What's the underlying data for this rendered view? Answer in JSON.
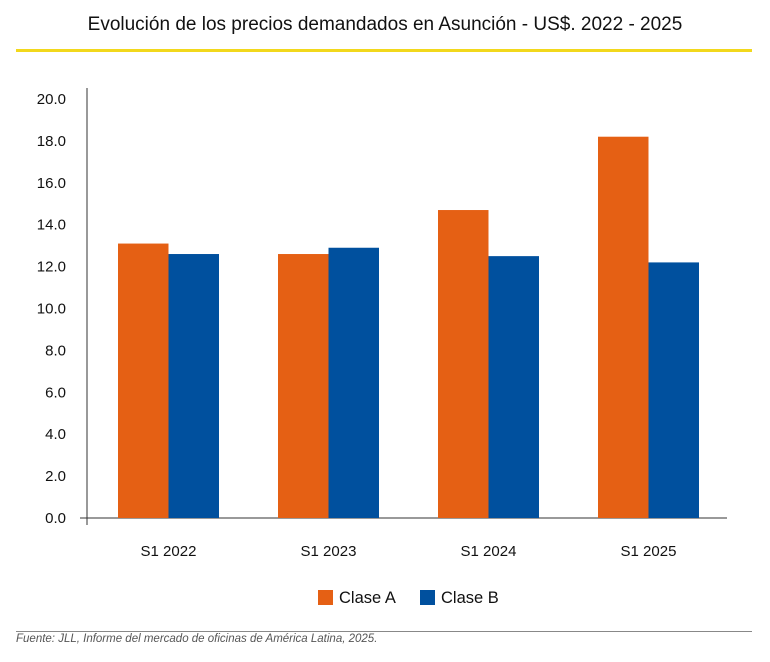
{
  "chart_data": {
    "type": "bar",
    "title": "Evolución de los precios demandados en Asunción - US$. 2022 - 2025",
    "categories": [
      "S1 2022",
      "S1 2023",
      "S1 2024",
      "S1 2025"
    ],
    "series": [
      {
        "name": "Clase A",
        "color": "#e56014",
        "values": [
          13.1,
          12.6,
          14.7,
          18.2
        ]
      },
      {
        "name": "Clase B",
        "color": "#00509e",
        "values": [
          12.6,
          12.9,
          12.5,
          12.2
        ]
      }
    ],
    "ylim": [
      0,
      20
    ],
    "yticks": [
      "0.0",
      "2.0",
      "4.0",
      "6.0",
      "8.0",
      "10.0",
      "12.0",
      "14.0",
      "16.0",
      "18.0",
      "20.0"
    ],
    "legend": "bottom",
    "grid": false,
    "xlabel": "",
    "ylabel": ""
  },
  "source": "Fuente: JLL, Informe del mercado de oficinas de América Latina, 2025."
}
